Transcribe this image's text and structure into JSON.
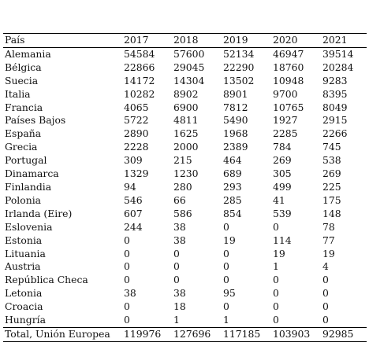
{
  "table": {
    "headers": [
      "País",
      "2017",
      "2018",
      "2019",
      "2020",
      "2021"
    ],
    "rows": [
      [
        "Alemania",
        "54584",
        "57600",
        "52134",
        "46947",
        "39514"
      ],
      [
        "Bélgica",
        "22866",
        "29045",
        "22290",
        "18760",
        "20284"
      ],
      [
        "Suecia",
        "14172",
        "14304",
        "13502",
        "10948",
        "9283"
      ],
      [
        "Italia",
        "10282",
        "8902",
        "8901",
        "9700",
        "8395"
      ],
      [
        "Francia",
        "4065",
        "6900",
        "7812",
        "10765",
        "8049"
      ],
      [
        "Países Bajos",
        "5722",
        "4811",
        "5490",
        "1927",
        "2915"
      ],
      [
        "España",
        "2890",
        "1625",
        "1968",
        "2285",
        "2266"
      ],
      [
        "Grecia",
        "2228",
        "2000",
        "2389",
        "784",
        "745"
      ],
      [
        "Portugal",
        "309",
        "215",
        "464",
        "269",
        "538"
      ],
      [
        "Dinamarca",
        "1329",
        "1230",
        "689",
        "305",
        "269"
      ],
      [
        "Finlandia",
        "94",
        "280",
        "293",
        "499",
        "225"
      ],
      [
        "Polonia",
        "546",
        "66",
        "285",
        "41",
        "175"
      ],
      [
        "Irlanda (Eire)",
        "607",
        "586",
        "854",
        "539",
        "148"
      ],
      [
        "Eslovenia",
        "244",
        "38",
        "0",
        "0",
        "78"
      ],
      [
        "Estonia",
        "0",
        "38",
        "19",
        "114",
        "77"
      ],
      [
        "Lituania",
        "0",
        "0",
        "0",
        "19",
        "19"
      ],
      [
        "Austria",
        "0",
        "0",
        "0",
        "1",
        "4"
      ],
      [
        "República Checa",
        "0",
        "0",
        "0",
        "0",
        "0"
      ],
      [
        "Letonia",
        "38",
        "38",
        "95",
        "0",
        "0"
      ],
      [
        "Croacia",
        "0",
        "18",
        "0",
        "0",
        "0"
      ],
      [
        "Hungría",
        "0",
        "1",
        "1",
        "0",
        "0"
      ]
    ],
    "total": [
      "Total, Unión Europea",
      "119976",
      "127696",
      "117185",
      "103903",
      "92985"
    ]
  }
}
